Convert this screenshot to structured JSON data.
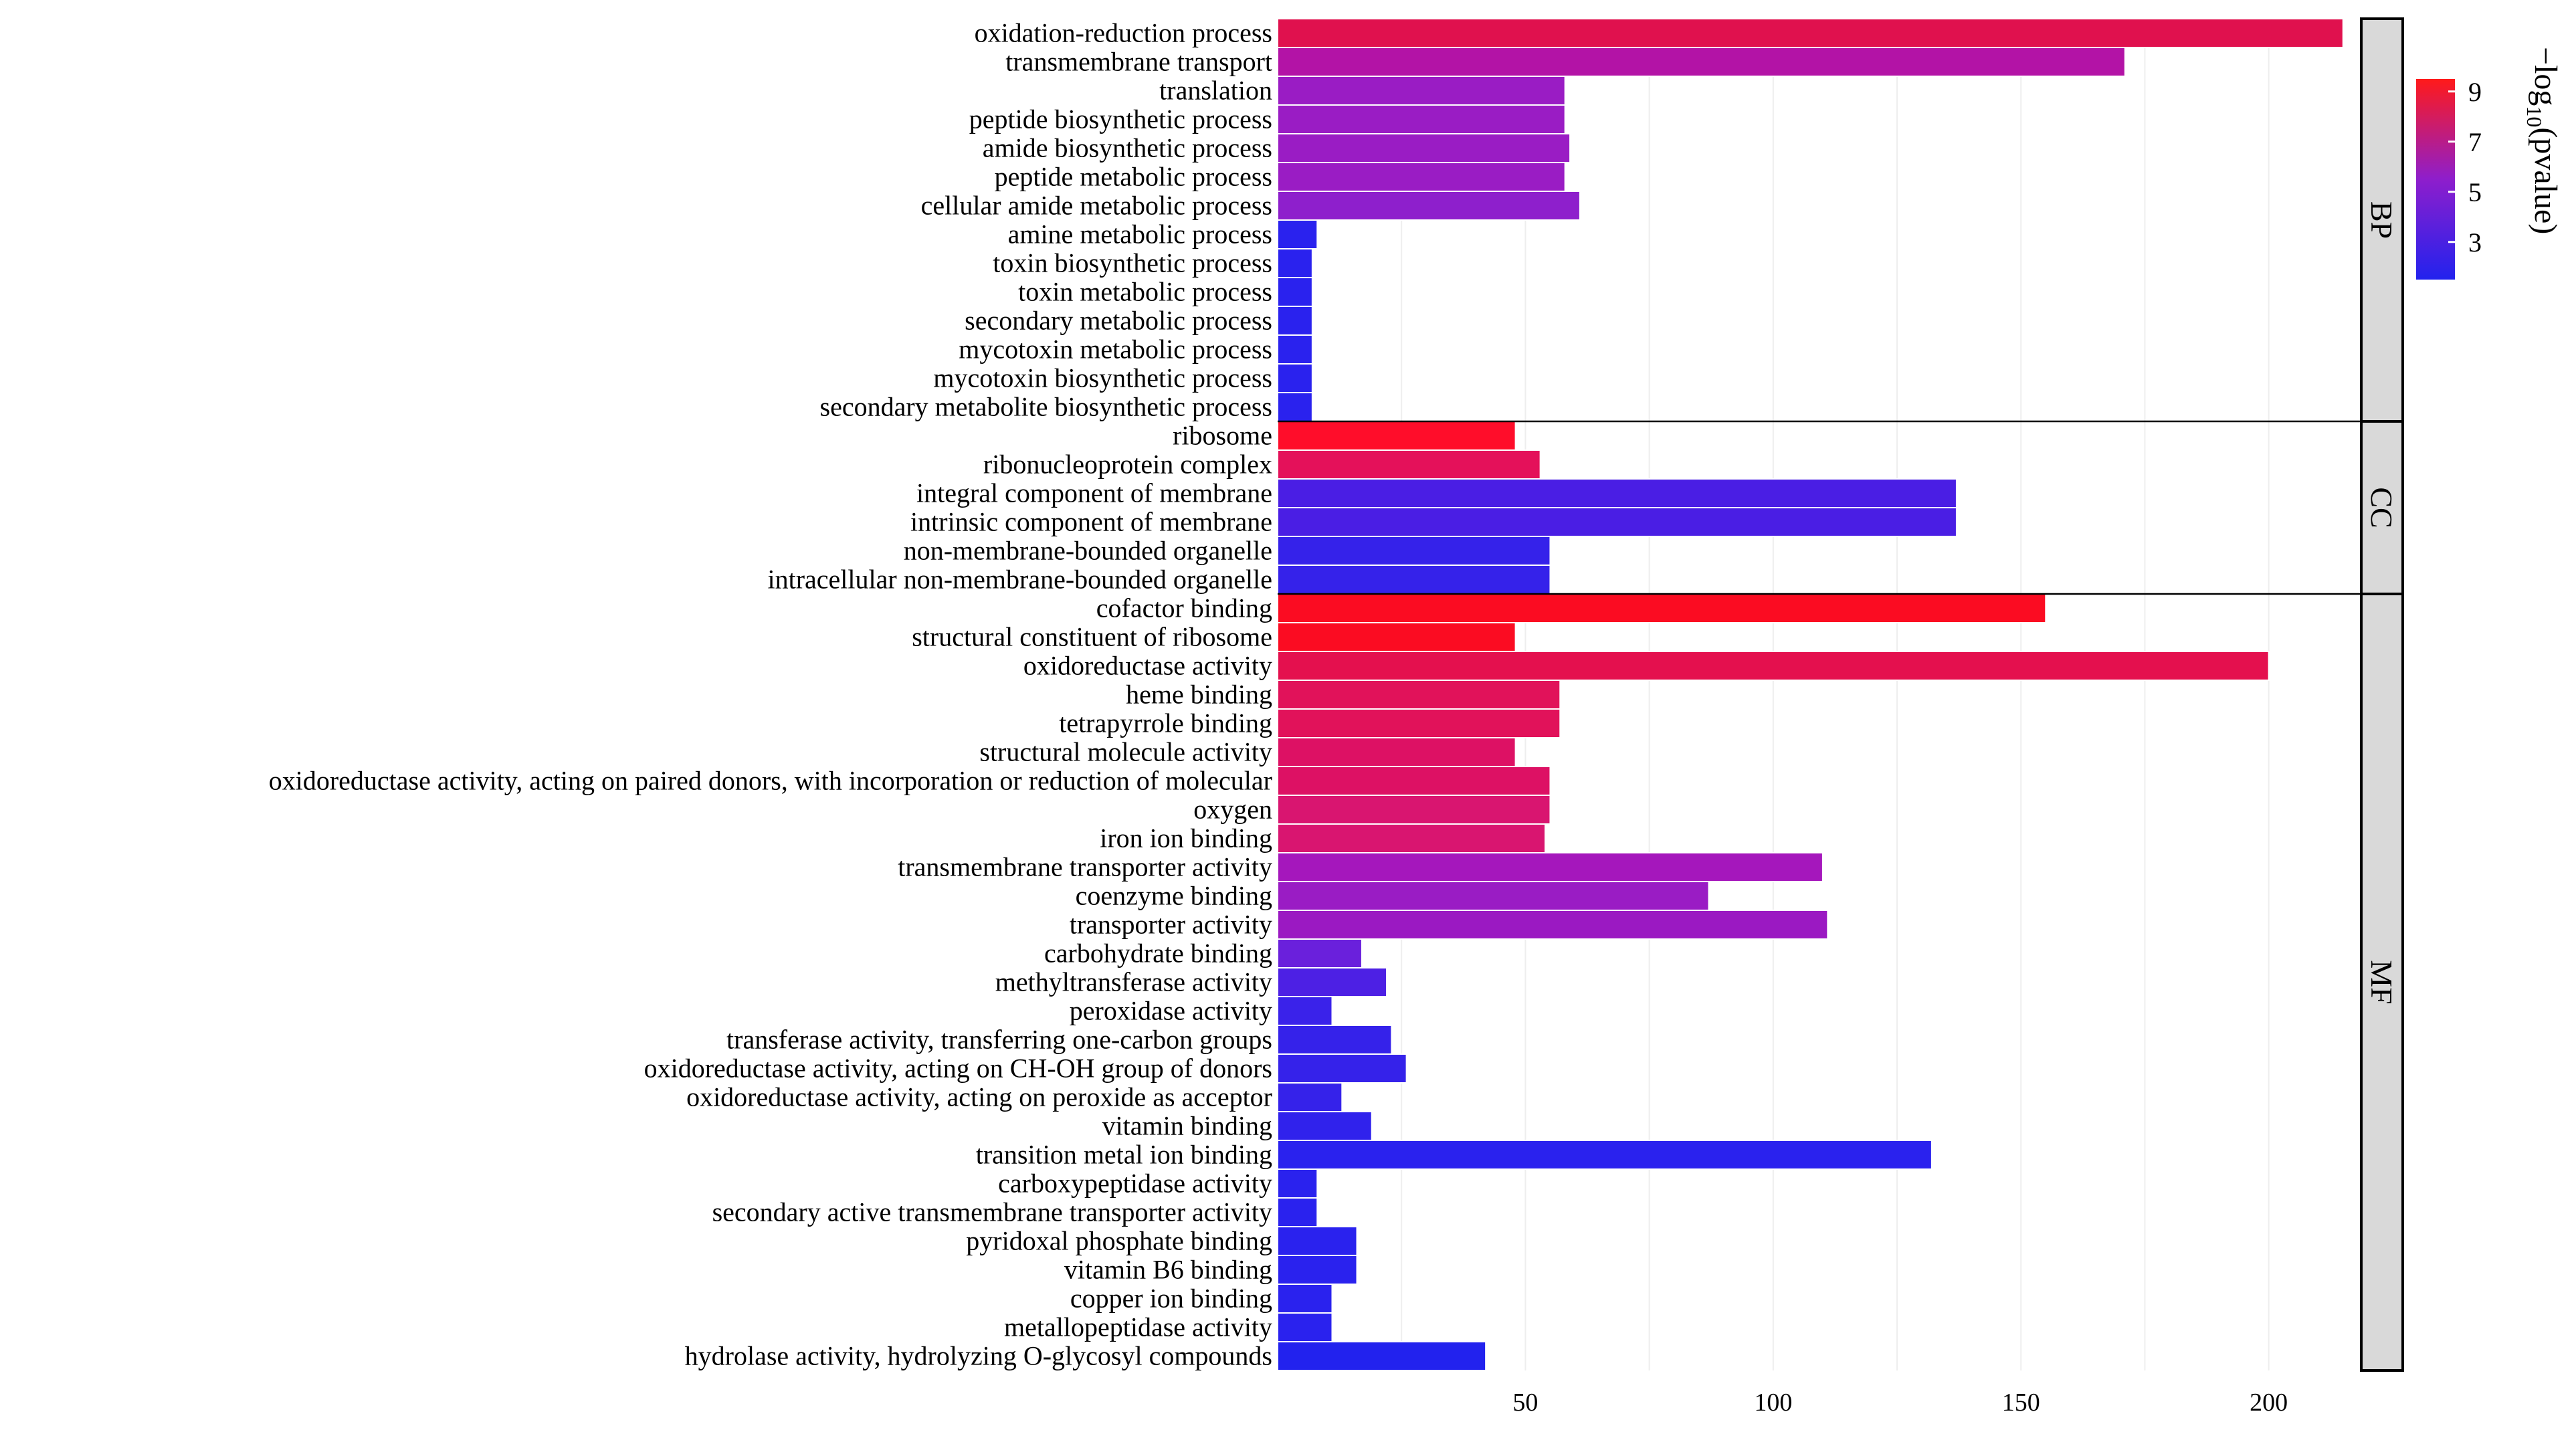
{
  "chart_data": {
    "type": "bar",
    "orientation": "horizontal",
    "title": "",
    "xlabel": "",
    "ylabel": "",
    "xlim": [
      0,
      218
    ],
    "x_ticks": [
      50,
      100,
      150,
      200
    ],
    "grid": true,
    "color_scale": {
      "label_parts": [
        "−log",
        "10",
        "(pvalue)"
      ],
      "low_color": "#2222ee",
      "mid_color": "#8e1ecc",
      "high_color": "#ff1a1a",
      "range": [
        1.5,
        9.5
      ],
      "ticks": [
        9,
        7,
        5,
        3
      ]
    },
    "facets": [
      {
        "name": "BP",
        "categories": [
          {
            "label": "oxidation-reduction process",
            "value": 215,
            "color": "#e0114e"
          },
          {
            "label": "transmembrane transport",
            "value": 171,
            "color": "#b313a6"
          },
          {
            "label": "translation",
            "value": 58,
            "color": "#9a1cc4"
          },
          {
            "label": "peptide biosynthetic process",
            "value": 58,
            "color": "#9a1cc4"
          },
          {
            "label": "amide biosynthetic process",
            "value": 59,
            "color": "#9a1cc4"
          },
          {
            "label": "peptide metabolic process",
            "value": 58,
            "color": "#9a1cc4"
          },
          {
            "label": "cellular amide metabolic process",
            "value": 61,
            "color": "#8e1fcc"
          },
          {
            "label": "amine metabolic process",
            "value": 8,
            "color": "#2a22ee"
          },
          {
            "label": "toxin biosynthetic process",
            "value": 7,
            "color": "#2a22ee"
          },
          {
            "label": "toxin metabolic process",
            "value": 7,
            "color": "#2a22ee"
          },
          {
            "label": "secondary metabolic process",
            "value": 7,
            "color": "#2a22ee"
          },
          {
            "label": "mycotoxin metabolic process",
            "value": 7,
            "color": "#2a22ee"
          },
          {
            "label": "mycotoxin biosynthetic process",
            "value": 7,
            "color": "#2a22ee"
          },
          {
            "label": "secondary metabolite biosynthetic process",
            "value": 7,
            "color": "#2a22ee"
          }
        ]
      },
      {
        "name": "CC",
        "categories": [
          {
            "label": "ribosome",
            "value": 48,
            "color": "#ff0d2a"
          },
          {
            "label": "ribonucleoprotein complex",
            "value": 53,
            "color": "#e4115a"
          },
          {
            "label": "integral component of membrane",
            "value": 137,
            "color": "#4a1ee4"
          },
          {
            "label": "intrinsic component of membrane",
            "value": 137,
            "color": "#4a1ee4"
          },
          {
            "label": "non-membrane-bounded organelle",
            "value": 55,
            "color": "#3522ea"
          },
          {
            "label": "intracellular non-membrane-bounded organelle",
            "value": 55,
            "color": "#3522ea"
          }
        ]
      },
      {
        "name": "MF",
        "categories": [
          {
            "label": "cofactor binding",
            "value": 155,
            "color": "#fb0c22"
          },
          {
            "label": "structural constituent of ribosome",
            "value": 48,
            "color": "#fb0c22"
          },
          {
            "label": "oxidoreductase activity",
            "value": 200,
            "color": "#e4104e"
          },
          {
            "label": "heme binding",
            "value": 57,
            "color": "#e1125a"
          },
          {
            "label": "tetrapyrrole binding",
            "value": 57,
            "color": "#e1125a"
          },
          {
            "label": "structural molecule activity",
            "value": 48,
            "color": "#dd1164"
          },
          {
            "label": "oxidoreductase activity, acting on paired donors, with incorporation or reduction of molecular",
            "value": 55,
            "color": "#dd1164"
          },
          {
            "label": "oxygen",
            "value": 55,
            "color": "#d91570"
          },
          {
            "label": "iron ion binding",
            "value": 54,
            "color": "#d91570"
          },
          {
            "label": "transmembrane transporter activity",
            "value": 110,
            "color": "#a517bc"
          },
          {
            "label": "coenzyme binding",
            "value": 87,
            "color": "#9a1cc4"
          },
          {
            "label": "transporter activity",
            "value": 111,
            "color": "#9b19c2"
          },
          {
            "label": "carbohydrate binding",
            "value": 17,
            "color": "#6a20dc"
          },
          {
            "label": "methyltransferase activity",
            "value": 22,
            "color": "#4d20e4"
          },
          {
            "label": "peroxidase activity",
            "value": 11,
            "color": "#3a22ea"
          },
          {
            "label": "transferase activity, transferring one-carbon groups",
            "value": 23,
            "color": "#3522ea"
          },
          {
            "label": "oxidoreductase activity, acting on CH-OH group of donors",
            "value": 26,
            "color": "#3522ea"
          },
          {
            "label": "oxidoreductase activity, acting on peroxide as acceptor",
            "value": 13,
            "color": "#3522ea"
          },
          {
            "label": "vitamin binding",
            "value": 19,
            "color": "#3022ec"
          },
          {
            "label": "transition metal ion binding",
            "value": 132,
            "color": "#2a22ee"
          },
          {
            "label": "carboxypeptidase activity",
            "value": 8,
            "color": "#2a22ee"
          },
          {
            "label": "secondary active transmembrane transporter activity",
            "value": 8,
            "color": "#2a22ee"
          },
          {
            "label": "pyridoxal phosphate binding",
            "value": 16,
            "color": "#2a22ee"
          },
          {
            "label": "vitamin B6 binding",
            "value": 16,
            "color": "#2a22ee"
          },
          {
            "label": "copper ion binding",
            "value": 11,
            "color": "#2a22ee"
          },
          {
            "label": "metallopeptidase activity",
            "value": 11,
            "color": "#2a22ee"
          },
          {
            "label": "hydrolase activity, hydrolyzing O-glycosyl compounds",
            "value": 42,
            "color": "#2222ee"
          }
        ]
      }
    ]
  }
}
